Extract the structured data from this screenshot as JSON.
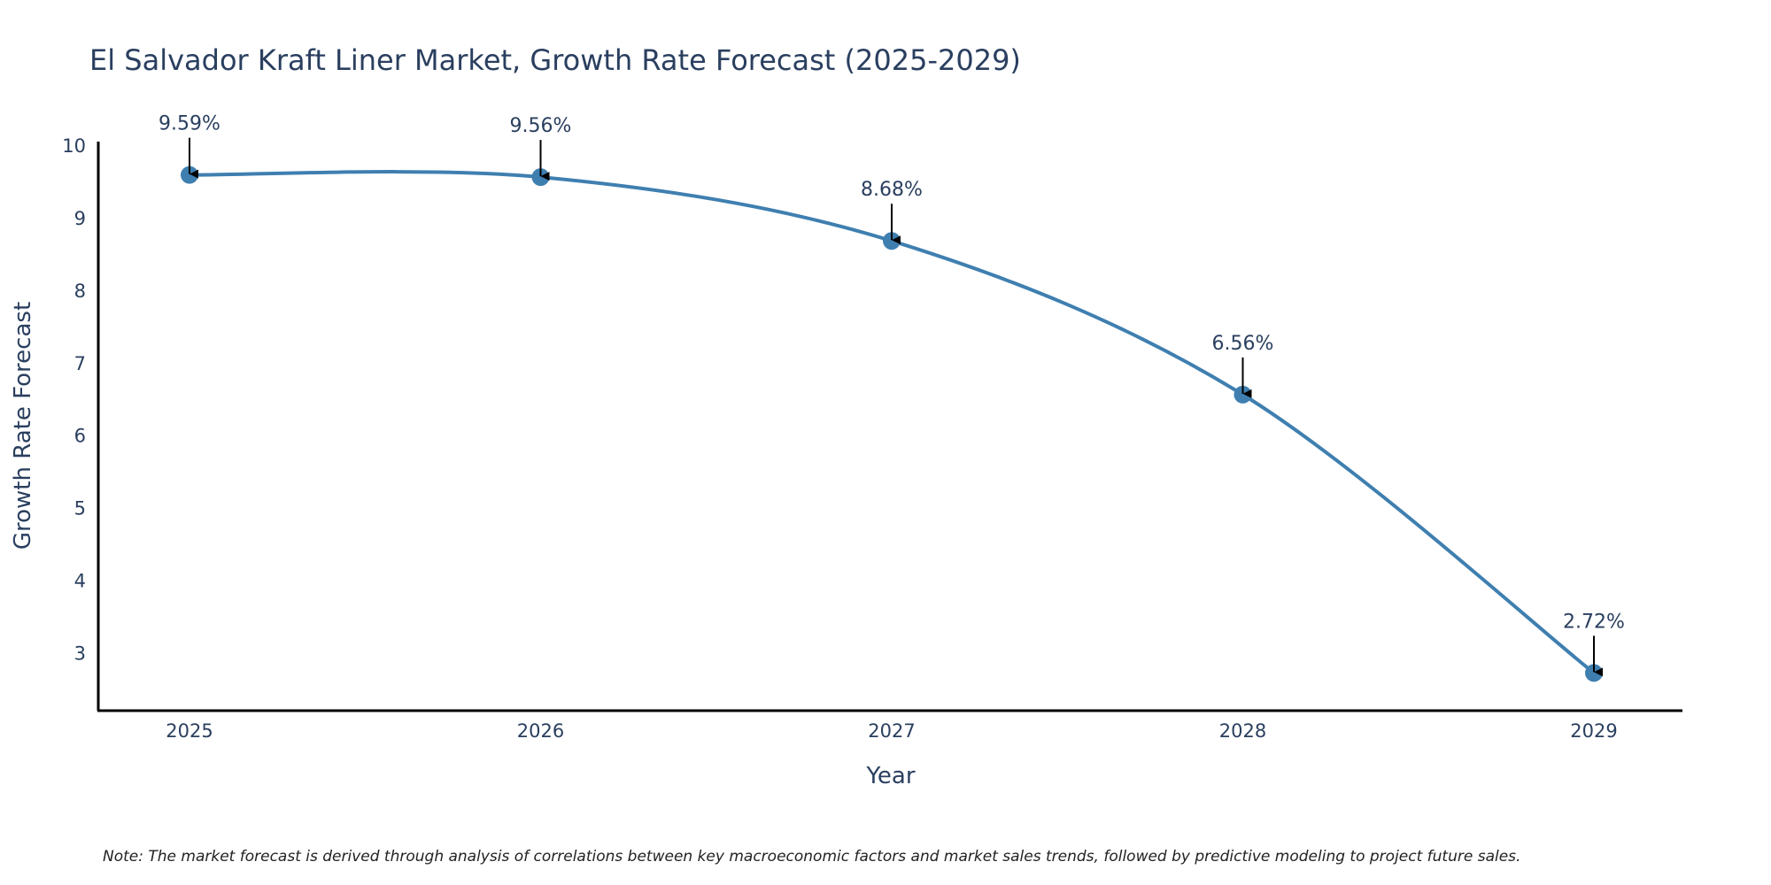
{
  "chart_data": {
    "type": "line",
    "title": "El Salvador Kraft Liner Market, Growth Rate Forecast (2025-2029)",
    "xlabel": "Year",
    "ylabel": "Growth Rate Forecast",
    "categories": [
      "2025",
      "2026",
      "2027",
      "2028",
      "2029"
    ],
    "series": [
      {
        "values": [
          9.59,
          9.56,
          8.68,
          6.56,
          2.72
        ]
      }
    ],
    "data_labels": [
      "9.59%",
      "9.56%",
      "8.68%",
      "6.56%",
      "2.72%"
    ],
    "y_ticks": [
      "3",
      "4",
      "5",
      "6",
      "7",
      "8",
      "9",
      "10"
    ],
    "ylim": [
      2.2,
      10.05
    ],
    "grid": false,
    "line_shape": "spline",
    "markers": true,
    "annotation_arrows": true,
    "color": "#3f7fb0"
  },
  "note": "Note: The market forecast is derived through analysis of correlations between key macroeconomic factors and market sales trends, followed by predictive modeling to project future sales."
}
